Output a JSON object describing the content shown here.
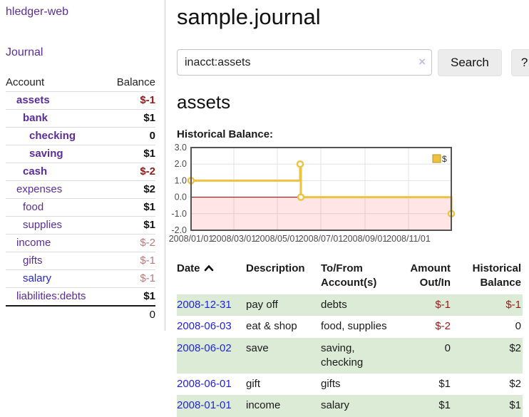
{
  "app": {
    "brand": "hledger-web"
  },
  "nav": {
    "journal": "Journal"
  },
  "sidebar": {
    "headers": {
      "account": "Account",
      "balance": "Balance"
    },
    "accounts": [
      {
        "name": "assets",
        "indent": 1,
        "bold": true,
        "blue": false,
        "balance": "$-1",
        "bstyle": "negbold"
      },
      {
        "name": "bank",
        "indent": 2,
        "bold": true,
        "blue": false,
        "balance": "$1",
        "bstyle": "bold"
      },
      {
        "name": "checking",
        "indent": 3,
        "bold": true,
        "blue": false,
        "balance": "0",
        "bstyle": "bold"
      },
      {
        "name": "saving",
        "indent": 3,
        "bold": true,
        "blue": false,
        "balance": "$1",
        "bstyle": "bold"
      },
      {
        "name": "cash",
        "indent": 2,
        "bold": true,
        "blue": false,
        "balance": "$-2",
        "bstyle": "negbold"
      },
      {
        "name": "expenses",
        "indent": 1,
        "bold": false,
        "blue": false,
        "balance": "$2",
        "bstyle": "bold"
      },
      {
        "name": "food",
        "indent": 2,
        "bold": false,
        "blue": false,
        "balance": "$1",
        "bstyle": "bold"
      },
      {
        "name": "supplies",
        "indent": 2,
        "bold": false,
        "blue": false,
        "balance": "$1",
        "bstyle": "bold"
      },
      {
        "name": "income",
        "indent": 1,
        "bold": false,
        "blue": false,
        "balance": "$-2",
        "bstyle": "neglight"
      },
      {
        "name": "gifts",
        "indent": 2,
        "bold": false,
        "blue": false,
        "balance": "$-1",
        "bstyle": "neglight"
      },
      {
        "name": "salary",
        "indent": 2,
        "bold": false,
        "blue": true,
        "balance": "$-1",
        "bstyle": "neglight"
      },
      {
        "name": "liabilities:debts",
        "indent": 1,
        "bold": false,
        "blue": false,
        "balance": "$1",
        "bstyle": "bold"
      }
    ],
    "total": "0"
  },
  "header": {
    "title": "sample.journal"
  },
  "search": {
    "value": "inacct:assets",
    "clear_icon": "×",
    "button_label": "Search",
    "help_label": "?"
  },
  "account_page": {
    "heading": "assets",
    "chart_title": "Historical Balance:"
  },
  "chart_data": {
    "type": "line",
    "title": "Historical Balance",
    "series": [
      {
        "name": "$",
        "color": "#edc240",
        "step": true,
        "markers": true,
        "points": [
          {
            "date": "2008-01-01",
            "value": 1
          },
          {
            "date": "2008-06-02",
            "value": 2
          },
          {
            "date": "2008-06-03",
            "value": 0
          },
          {
            "date": "2008-12-31",
            "value": -1
          }
        ]
      }
    ],
    "xlim": [
      "2008-01-01",
      "2008-12-31"
    ],
    "ylim": [
      -2,
      3
    ],
    "yticks": [
      3,
      2,
      1,
      0,
      -1,
      -2
    ],
    "ytick_labels": [
      "3.0",
      "2.0",
      "1.0",
      "0.0",
      "-1.0",
      "-2.0"
    ],
    "xticks": [
      "2008-01-01",
      "2008-03-01",
      "2008-05-01",
      "2008-07-01",
      "2008-09-01",
      "2008-11-01"
    ],
    "xtick_labels": [
      "2008/01/01",
      "2008/03/01",
      "2008/05/01",
      "2008/07/01",
      "2008/09/01",
      "2008/11/01"
    ],
    "grid": true,
    "legend": {
      "position": "top-right",
      "label": "$"
    },
    "colors": {
      "line": "#edc240",
      "grid": "#e3e3e3",
      "border": "#545454",
      "zero_line": "#8b0000",
      "negative_fill": "rgba(255,0,0,0.10)",
      "tick_text": "#4d4d4d"
    }
  },
  "register": {
    "headers": [
      {
        "label": "Date",
        "align": "left",
        "sortable": true
      },
      {
        "label": "Description",
        "align": "left",
        "sortable": false
      },
      {
        "label": "To/From\nAccount(s)",
        "align": "left",
        "sortable": false
      },
      {
        "label": "Amount\nOut/In",
        "align": "right",
        "sortable": false
      },
      {
        "label": "Historical\nBalance",
        "align": "right",
        "sortable": false
      }
    ],
    "rows": [
      {
        "date": "2008-12-31",
        "description": "pay off",
        "accounts": "debts",
        "amount": "$-1",
        "amount_neg": true,
        "balance": "$-1",
        "balance_neg": true
      },
      {
        "date": "2008-06-03",
        "description": "eat & shop",
        "accounts": "food, supplies",
        "amount": "$-2",
        "amount_neg": true,
        "balance": "0",
        "balance_neg": false
      },
      {
        "date": "2008-06-02",
        "description": "save",
        "accounts": "saving,\nchecking",
        "amount": "0",
        "amount_neg": false,
        "balance": "$2",
        "balance_neg": false
      },
      {
        "date": "2008-06-01",
        "description": "gift",
        "accounts": "gifts",
        "amount": "$1",
        "amount_neg": false,
        "balance": "$2",
        "balance_neg": false
      },
      {
        "date": "2008-01-01",
        "description": "income",
        "accounts": "salary",
        "amount": "$1",
        "amount_neg": false,
        "balance": "$1",
        "balance_neg": false
      }
    ]
  }
}
